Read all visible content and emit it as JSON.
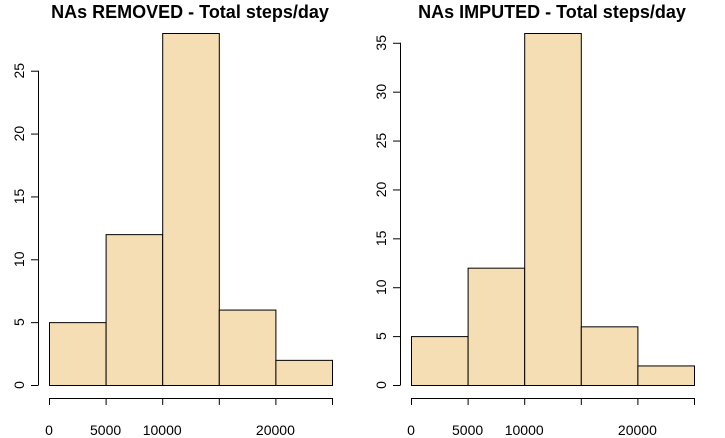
{
  "chart_data": [
    {
      "type": "bar",
      "title": "NAs REMOVED - Total steps/day",
      "xlabel": "",
      "ylabel": "",
      "bin_edges": [
        0,
        5000,
        10000,
        15000,
        20000,
        25000
      ],
      "values": [
        5,
        12,
        28,
        6,
        2
      ],
      "xlim": [
        0,
        25000
      ],
      "ylim": [
        0,
        28
      ],
      "x_ticks": [
        0,
        5000,
        10000,
        20000
      ],
      "x_tick_labels": [
        "0",
        "5000",
        "10000",
        "20000"
      ],
      "y_ticks": [
        0,
        5,
        10,
        15,
        20,
        25
      ],
      "y_tick_labels": [
        "0",
        "5",
        "10",
        "15",
        "20",
        "25"
      ],
      "bar_color": "#f5deb3",
      "grid": false
    },
    {
      "type": "bar",
      "title": "NAs IMPUTED - Total steps/day",
      "xlabel": "",
      "ylabel": "",
      "bin_edges": [
        0,
        5000,
        10000,
        15000,
        20000,
        25000
      ],
      "values": [
        5,
        12,
        36,
        6,
        2
      ],
      "xlim": [
        0,
        25000
      ],
      "ylim": [
        0,
        36
      ],
      "x_ticks": [
        0,
        5000,
        10000,
        20000
      ],
      "x_tick_labels": [
        "0",
        "5000",
        "10000",
        "20000"
      ],
      "y_ticks": [
        0,
        5,
        10,
        15,
        20,
        25,
        30,
        35
      ],
      "y_tick_labels": [
        "0",
        "5",
        "10",
        "15",
        "20",
        "25",
        "30",
        "35"
      ],
      "bar_color": "#f5deb3",
      "grid": false
    }
  ]
}
